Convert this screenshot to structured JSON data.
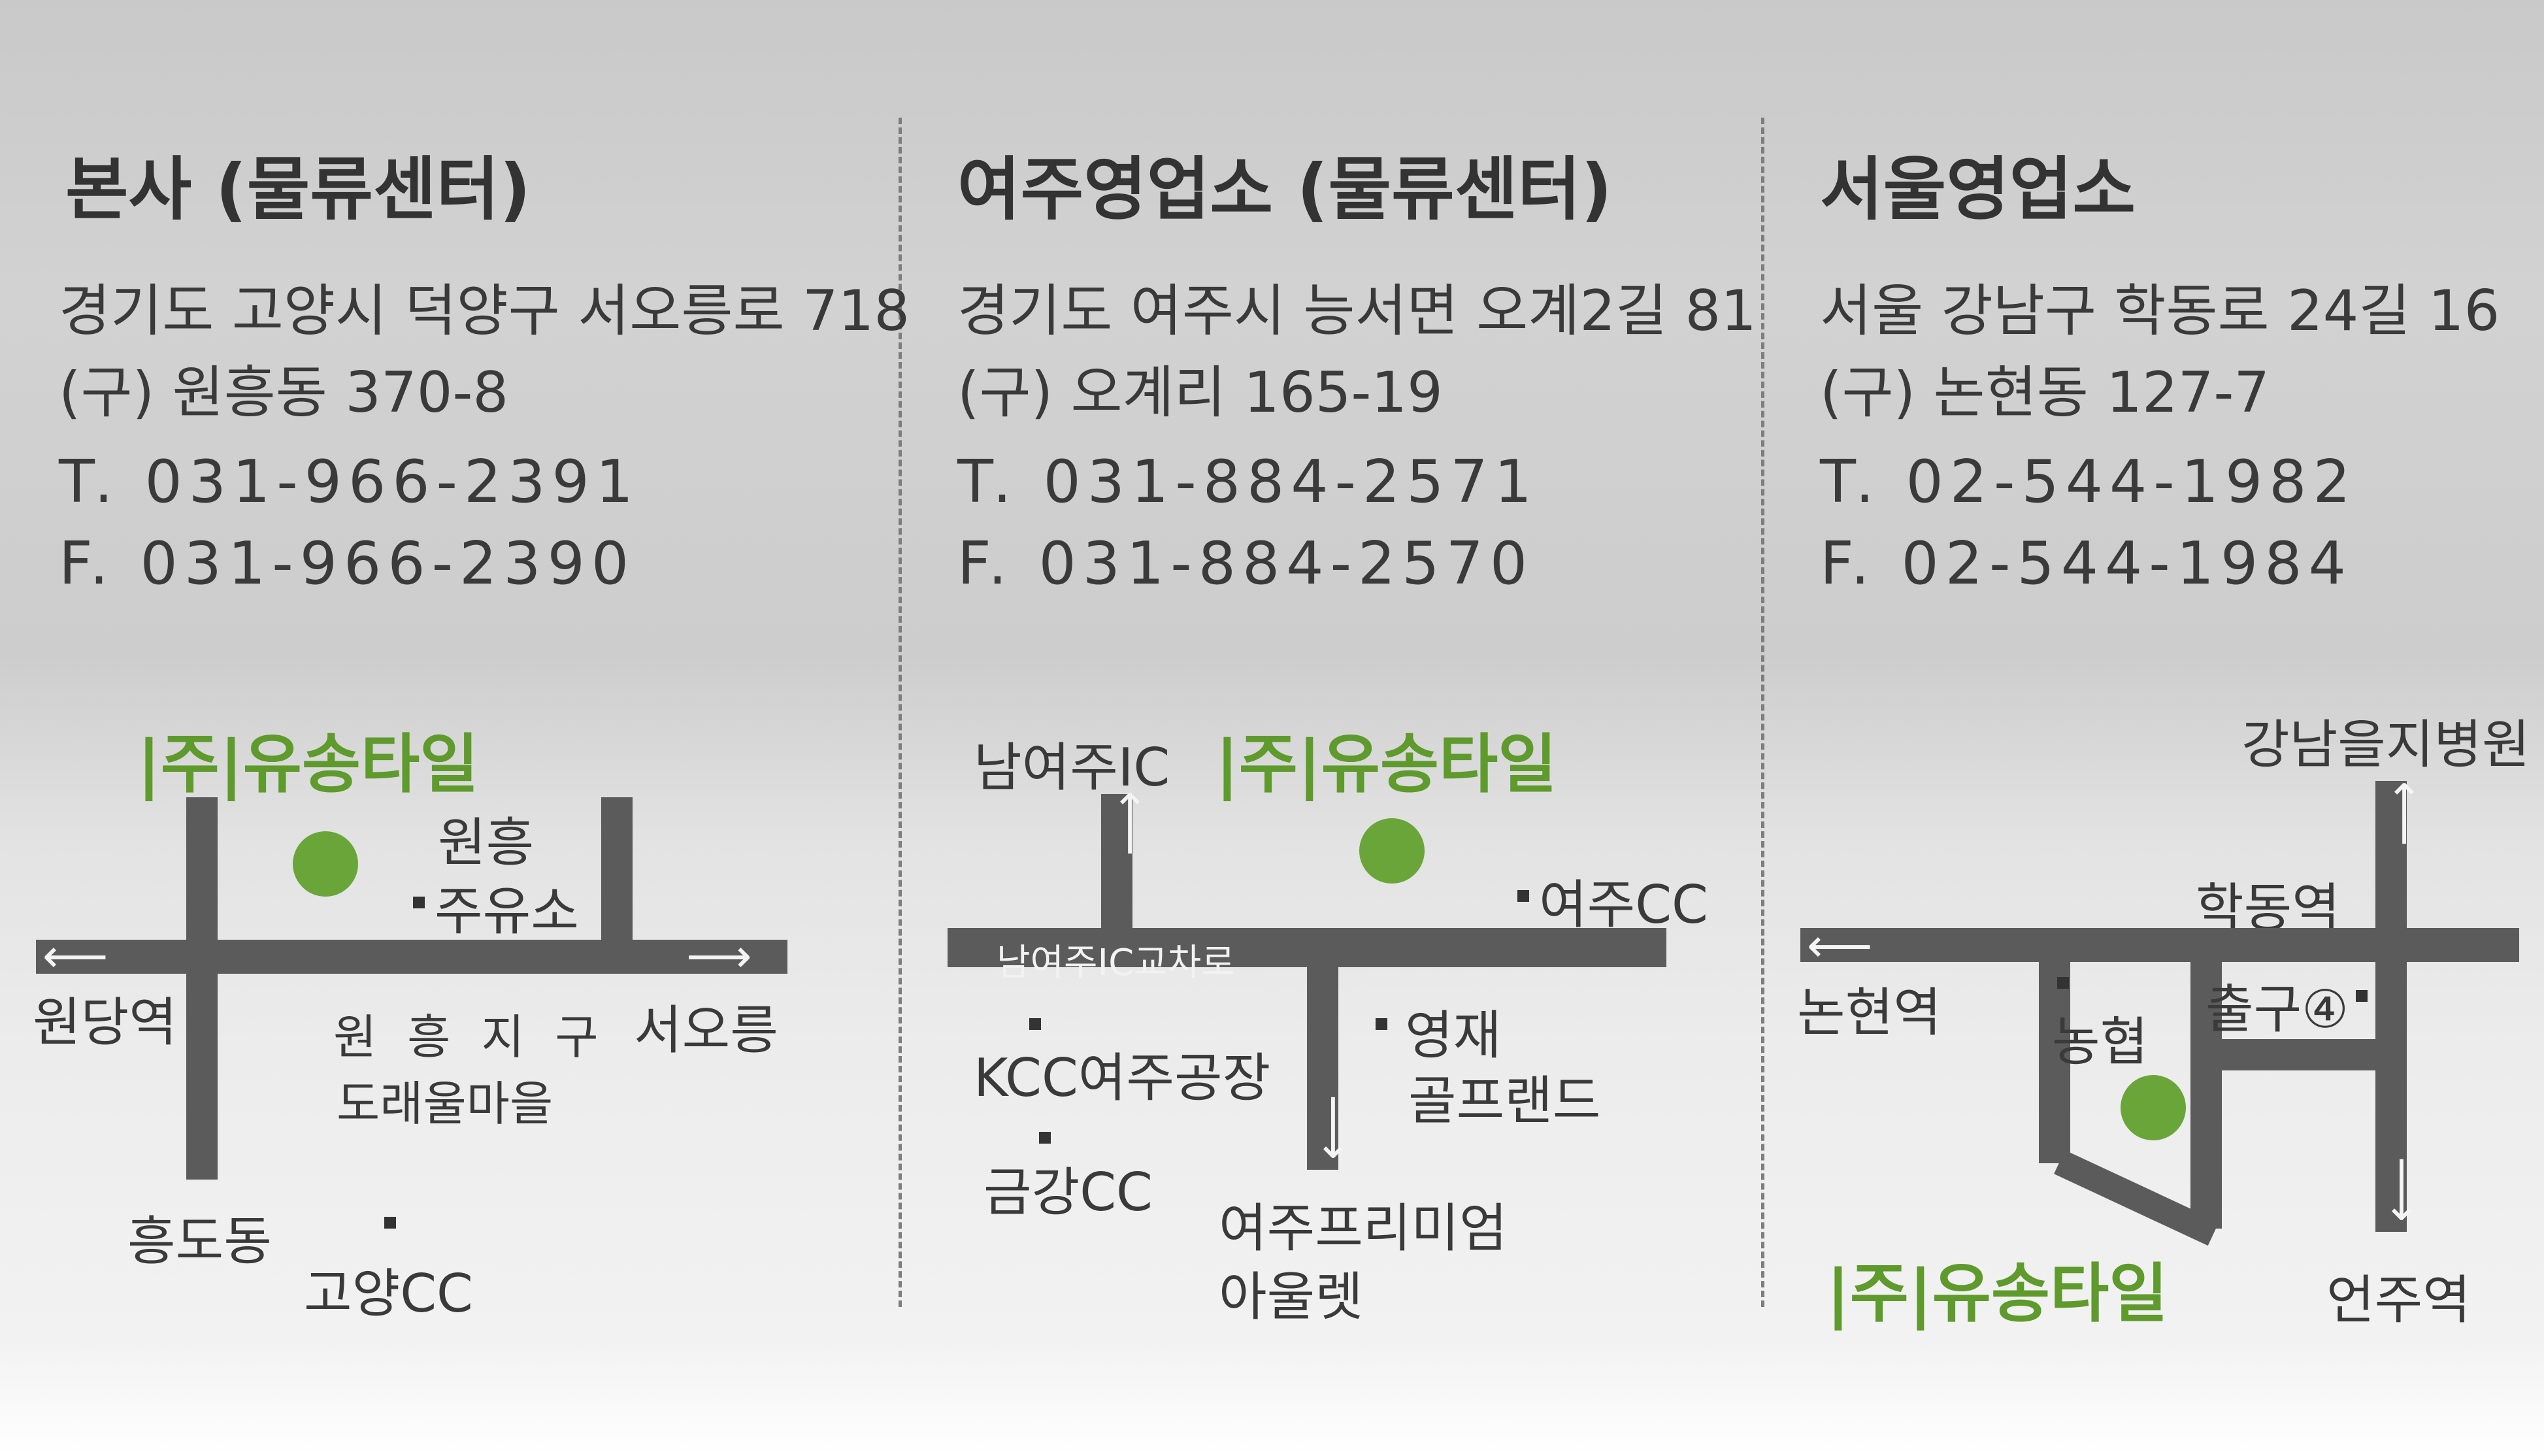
{
  "offices": [
    {
      "title": "본사 (물류센터)",
      "address": "경기도 고양시 덕양구 서오릉로 718",
      "old_address": "(구) 원흥동 370-8",
      "tel": "T. 031-966-2391",
      "fax": "F. 031-966-2390",
      "map": {
        "brand": "|주|유송타일",
        "labels": {
          "wonheung": "원흥",
          "gas_station": "주유소",
          "wondang": "원당역",
          "seooreung": "서오릉",
          "district_1": "원 흥 지 구",
          "district_2": "도래울마을",
          "heungdo": "흥도동",
          "goyang_cc": "고양CC"
        }
      }
    },
    {
      "title": "여주영업소 (물류센터)",
      "address": "경기도 여주시 능서면 오계2길 81",
      "old_address": "(구) 오계리 165-19",
      "tel": "T. 031-884-2571",
      "fax": "F. 031-884-2570",
      "map": {
        "brand": "|주|유송타일",
        "labels": {
          "nam_yeoju_ic": "남여주IC",
          "yeoju_cc": "여주CC",
          "ic_intersection": "남여주IC교차로",
          "kcc_factory": "KCC여주공장",
          "yeongjae_1": "영재",
          "yeongjae_2": "골프랜드",
          "geumgang_cc": "금강CC",
          "outlet_1": "여주프리미엄",
          "outlet_2": "아울렛"
        }
      }
    },
    {
      "title": "서울영업소",
      "address": "서울 강남구 학동로 24길 16",
      "old_address": "(구) 논현동 127-7",
      "tel": "T. 02-544-1982",
      "fax": "F. 02-544-1984",
      "map": {
        "brand": "|주|유송타일",
        "labels": {
          "hospital": "강남을지병원",
          "hakdong": "학동역",
          "nonhyeon": "논현역",
          "nonghyup": "농협",
          "exit_4": "출구④",
          "eonju": "언주역"
        }
      }
    }
  ],
  "colors": {
    "brand_green": "#5e9a2c",
    "dot_green": "#6aa53a",
    "road": "#5b5b5b",
    "text": "#3a3a3a"
  }
}
